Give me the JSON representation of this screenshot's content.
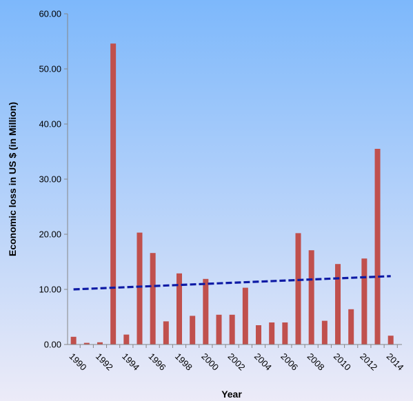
{
  "chart_data": {
    "type": "bar",
    "title": "",
    "xlabel": "Year",
    "ylabel": "Economic loss in US $ (in Million)",
    "ylim": [
      0,
      60
    ],
    "y_ticks": [
      "0.00",
      "10.00",
      "20.00",
      "30.00",
      "40.00",
      "50.00",
      "60.00"
    ],
    "categories": [
      1990,
      1991,
      1992,
      1993,
      1994,
      1995,
      1996,
      1997,
      1998,
      1999,
      2000,
      2001,
      2002,
      2003,
      2004,
      2005,
      2006,
      2007,
      2008,
      2009,
      2010,
      2011,
      2012,
      2013,
      2014
    ],
    "x_tick_labels": [
      "1990",
      "1992",
      "1994",
      "1996",
      "1998",
      "2000",
      "2002",
      "2004",
      "2006",
      "2008",
      "2010",
      "2012",
      "2014"
    ],
    "values": [
      1.4,
      0.3,
      0.4,
      54.6,
      1.8,
      20.3,
      16.6,
      4.2,
      12.9,
      5.2,
      11.9,
      5.4,
      5.4,
      10.3,
      3.5,
      4.0,
      4.0,
      20.2,
      17.1,
      4.3,
      14.6,
      6.4,
      15.6,
      35.5,
      1.6
    ],
    "trendline": {
      "type": "linear",
      "start": [
        1990,
        10.0
      ],
      "end": [
        2014,
        12.4
      ]
    },
    "grid": false,
    "legend": "none",
    "colors": {
      "bar": "#c0504d",
      "trendline": "#0d1aa5",
      "background_top": "#7db8fb",
      "background_bottom": "#ecebf8",
      "axis": "#868686"
    }
  }
}
